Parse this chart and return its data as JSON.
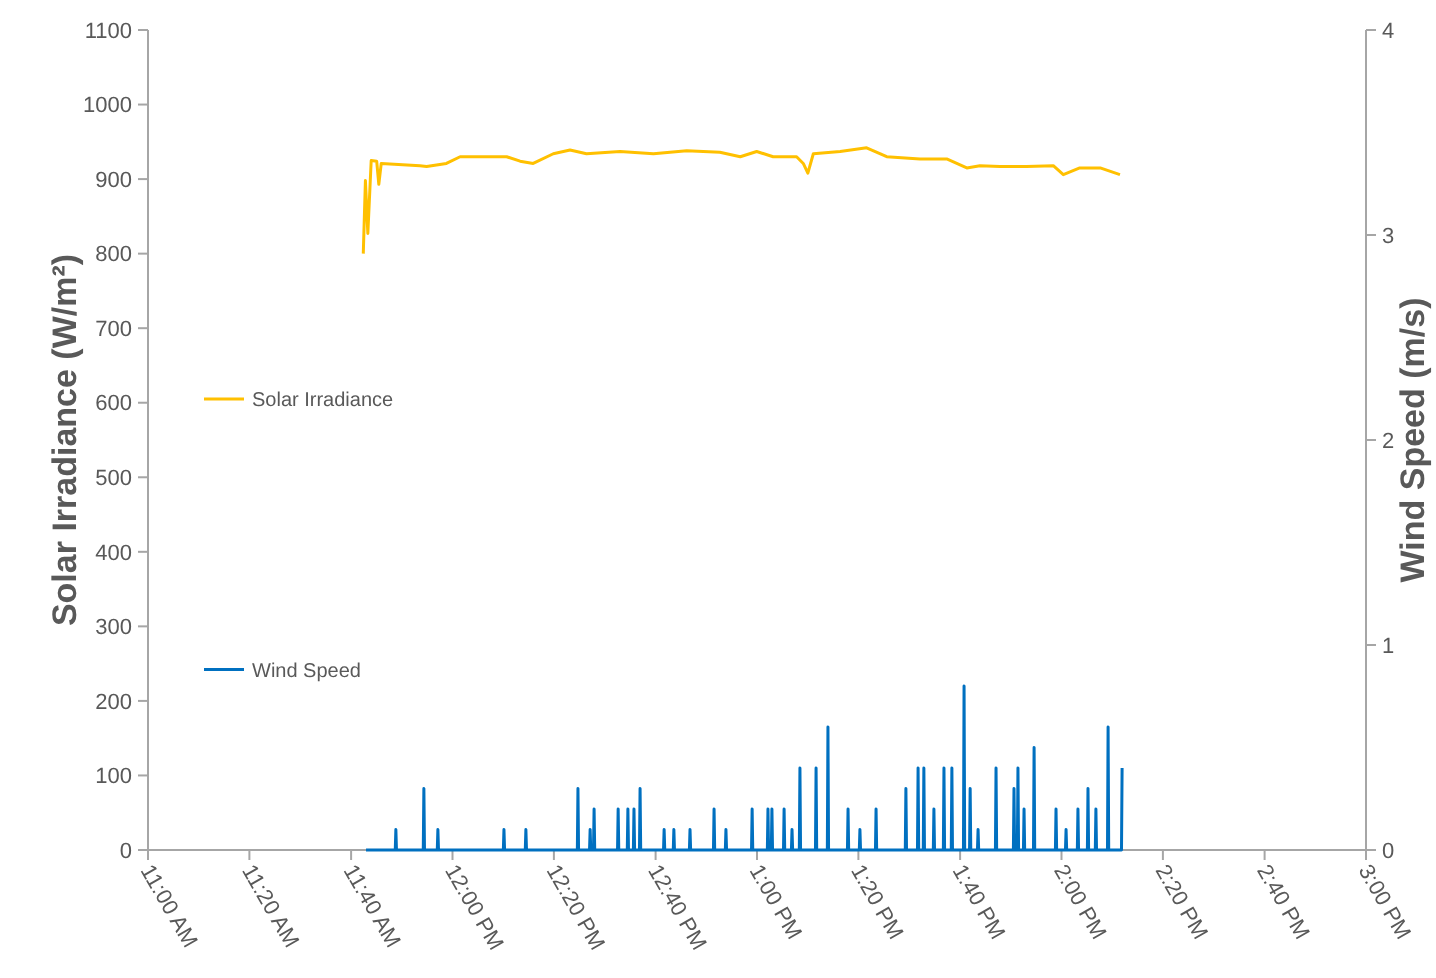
{
  "chart_data": {
    "type": "line",
    "xlabel": null,
    "ylabel": "Solar Irradiance (W/m²)",
    "y2label": "Wind Speed (m/s)",
    "xlim": [
      11,
      15
    ],
    "xticks": [
      {
        "value": 11,
        "label": "11:00 AM"
      },
      {
        "value": 11.333,
        "label": "11:20 AM"
      },
      {
        "value": 11.667,
        "label": "11:40 AM"
      },
      {
        "value": 12,
        "label": "12:00 PM"
      },
      {
        "value": 12.333,
        "label": "12:20 PM"
      },
      {
        "value": 12.667,
        "label": "12:40 PM"
      },
      {
        "value": 13,
        "label": "1:00 PM"
      },
      {
        "value": 13.333,
        "label": "1:20 PM"
      },
      {
        "value": 13.667,
        "label": "1:40 PM"
      },
      {
        "value": 14,
        "label": "2:00 PM"
      },
      {
        "value": 14.333,
        "label": "2:20 PM"
      },
      {
        "value": 14.667,
        "label": "2:40 PM"
      },
      {
        "value": 15,
        "label": "3:00 PM"
      }
    ],
    "ylim": [
      0,
      1100
    ],
    "yticks": [
      0,
      100,
      200,
      300,
      400,
      500,
      600,
      700,
      800,
      900,
      1000,
      1100
    ],
    "y2lim": [
      0,
      4
    ],
    "y2ticks": [
      0,
      1,
      2,
      3,
      4
    ],
    "legend": "left",
    "grid": false,
    "marker": "none",
    "line_style": "solid",
    "series": [
      {
        "name": "Solar Irradiance",
        "color": "#ffc000",
        "x": [
          11.707,
          11.714,
          11.722,
          11.733,
          11.751,
          11.758,
          11.766,
          11.893,
          11.915,
          11.98,
          12.025,
          12.178,
          12.222,
          12.265,
          12.331,
          12.386,
          12.44,
          12.55,
          12.66,
          12.769,
          12.878,
          12.945,
          12.999,
          13.053,
          13.13,
          13.152,
          13.167,
          13.185,
          13.273,
          13.36,
          13.426,
          13.535,
          13.623,
          13.689,
          13.732,
          13.798,
          13.885,
          13.973,
          14.006,
          14.06,
          14.127,
          14.192
        ],
        "values": [
          800,
          898,
          827,
          925,
          924,
          893,
          921,
          918,
          917,
          921,
          930,
          930,
          924,
          921,
          934,
          939,
          934,
          937,
          934,
          938,
          936,
          930,
          937,
          930,
          930,
          921,
          908,
          934,
          937,
          942,
          930,
          927,
          927,
          915,
          918,
          917,
          917,
          918,
          906,
          915,
          915,
          906
        ]
      },
      {
        "name": "Wind Speed",
        "color": "#0070c0",
        "axis": "y2",
        "x": [
          11.716,
          11.812,
          11.814,
          11.816,
          11.904,
          11.906,
          11.908,
          11.95,
          11.952,
          11.954,
          12.167,
          12.169,
          12.171,
          12.239,
          12.241,
          12.243,
          12.41,
          12.412,
          12.414,
          12.45,
          12.452,
          12.454,
          12.463,
          12.465,
          12.467,
          12.542,
          12.544,
          12.546,
          12.574,
          12.576,
          12.578,
          12.594,
          12.596,
          12.598,
          12.614,
          12.616,
          12.618,
          12.693,
          12.695,
          12.697,
          12.725,
          12.727,
          12.729,
          12.778,
          12.78,
          12.782,
          12.857,
          12.859,
          12.861,
          12.896,
          12.898,
          12.9,
          12.982,
          12.984,
          12.986,
          13.034,
          13.036,
          13.038,
          13.047,
          13.049,
          13.051,
          13.087,
          13.089,
          13.091,
          13.113,
          13.115,
          13.117,
          13.139,
          13.141,
          13.143,
          13.192,
          13.194,
          13.196,
          13.231,
          13.233,
          13.235,
          13.297,
          13.299,
          13.301,
          13.336,
          13.338,
          13.34,
          13.389,
          13.391,
          13.393,
          13.487,
          13.489,
          13.491,
          13.527,
          13.529,
          13.531,
          13.546,
          13.548,
          13.55,
          13.579,
          13.581,
          13.583,
          13.612,
          13.614,
          13.616,
          13.638,
          13.64,
          13.642,
          13.678,
          13.68,
          13.682,
          13.698,
          13.7,
          13.702,
          13.724,
          13.726,
          13.728,
          13.783,
          13.785,
          13.787,
          13.842,
          13.844,
          13.846,
          13.855,
          13.857,
          13.859,
          13.875,
          13.877,
          13.879,
          13.908,
          13.91,
          13.912,
          13.98,
          13.982,
          13.984,
          14.013,
          14.015,
          14.017,
          14.052,
          14.054,
          14.056,
          14.085,
          14.087,
          14.089,
          14.111,
          14.113,
          14.115,
          14.151,
          14.153,
          14.155,
          14.197,
          14.199
        ],
        "values": [
          0,
          0,
          0.1,
          0,
          0,
          0.3,
          0,
          0,
          0.1,
          0,
          0,
          0.1,
          0,
          0,
          0.1,
          0,
          0,
          0.3,
          0,
          0,
          0.1,
          0,
          0,
          0.2,
          0,
          0,
          0.2,
          0,
          0,
          0.2,
          0,
          0,
          0.2,
          0,
          0,
          0.3,
          0,
          0,
          0.1,
          0,
          0,
          0.1,
          0,
          0,
          0.1,
          0,
          0,
          0.2,
          0,
          0,
          0.1,
          0,
          0,
          0.2,
          0,
          0,
          0.2,
          0,
          0,
          0.2,
          0,
          0,
          0.2,
          0,
          0,
          0.1,
          0,
          0,
          0.4,
          0,
          0,
          0.4,
          0,
          0,
          0.6,
          0,
          0,
          0.2,
          0,
          0,
          0.1,
          0,
          0,
          0.2,
          0,
          0,
          0.3,
          0,
          0,
          0.4,
          0,
          0,
          0.4,
          0,
          0,
          0.2,
          0,
          0,
          0.4,
          0,
          0,
          0.4,
          0,
          0,
          0.8,
          0,
          0,
          0.3,
          0,
          0,
          0.1,
          0,
          0,
          0.4,
          0,
          0,
          0.3,
          0,
          0,
          0.4,
          0,
          0,
          0.2,
          0,
          0,
          0.5,
          0,
          0,
          0.2,
          0,
          0,
          0.1,
          0,
          0,
          0.2,
          0,
          0,
          0.3,
          0,
          0,
          0.2,
          0,
          0,
          0.6,
          0,
          0,
          0.4
        ]
      }
    ]
  }
}
